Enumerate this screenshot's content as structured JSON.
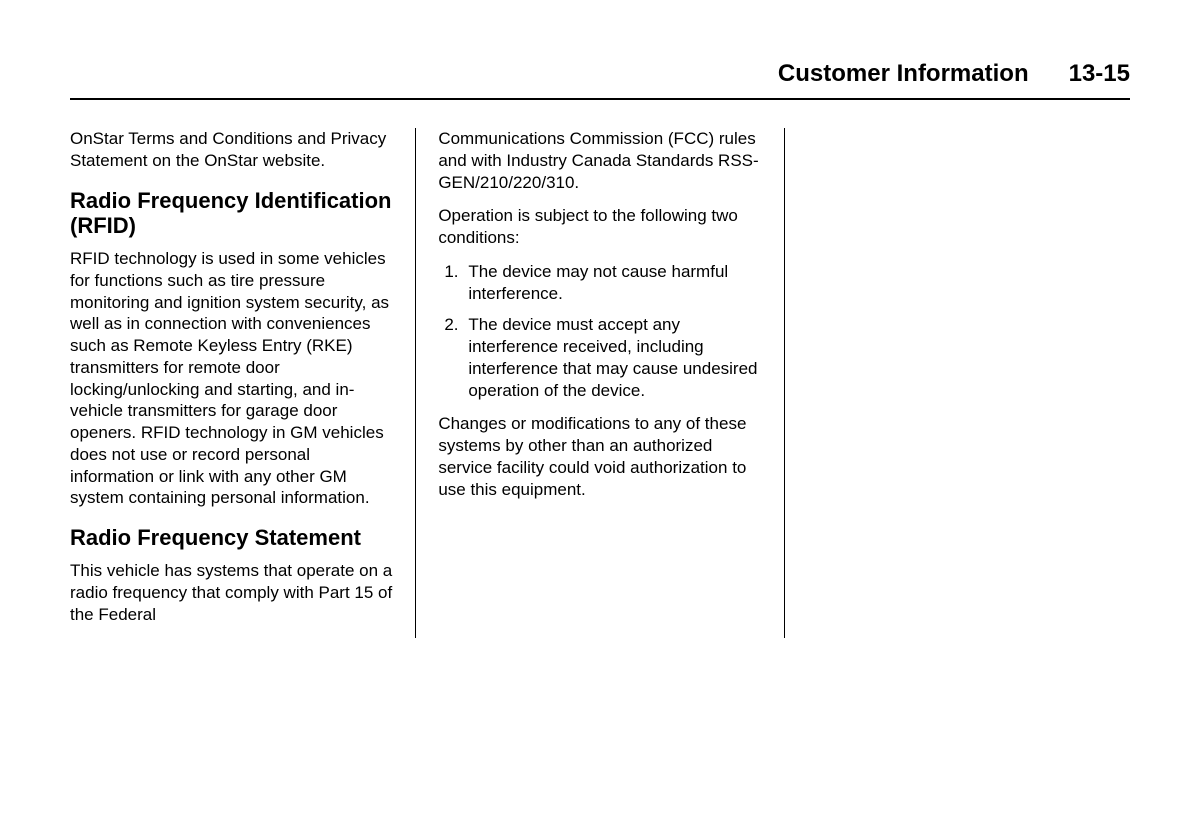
{
  "header": {
    "title": "Customer Information",
    "page": "13-15"
  },
  "col1": {
    "intro_para": "OnStar Terms and Conditions and Privacy Statement on the OnStar website.",
    "heading1": "Radio Frequency Identification (RFID)",
    "rfid_para": "RFID technology is used in some vehicles for functions such as tire pressure monitoring and ignition system security, as well as in connection with conveniences such as Remote Keyless Entry (RKE) transmitters for remote door locking/unlocking and starting, and in-vehicle transmitters for garage door openers. RFID technology in GM vehicles does not use or record personal information or link with any other GM system containing personal information.",
    "heading2": "Radio Frequency Statement",
    "rfs_para": "This vehicle has systems that operate on a radio frequency that comply with Part 15 of the Federal"
  },
  "col2": {
    "cont_para": "Communications Commission (FCC) rules and with Industry Canada Standards RSS-GEN/210/220/310.",
    "op_para": "Operation is subject to the following two conditions:",
    "item1_num": "1.",
    "item1_text": "The device may not cause harmful interference.",
    "item2_num": "2.",
    "item2_text": "The device must accept any interference received, including interference that may cause undesired operation of the device.",
    "changes_para": "Changes or modifications to any of these systems by other than an authorized service facility could void authorization to use this equipment."
  }
}
